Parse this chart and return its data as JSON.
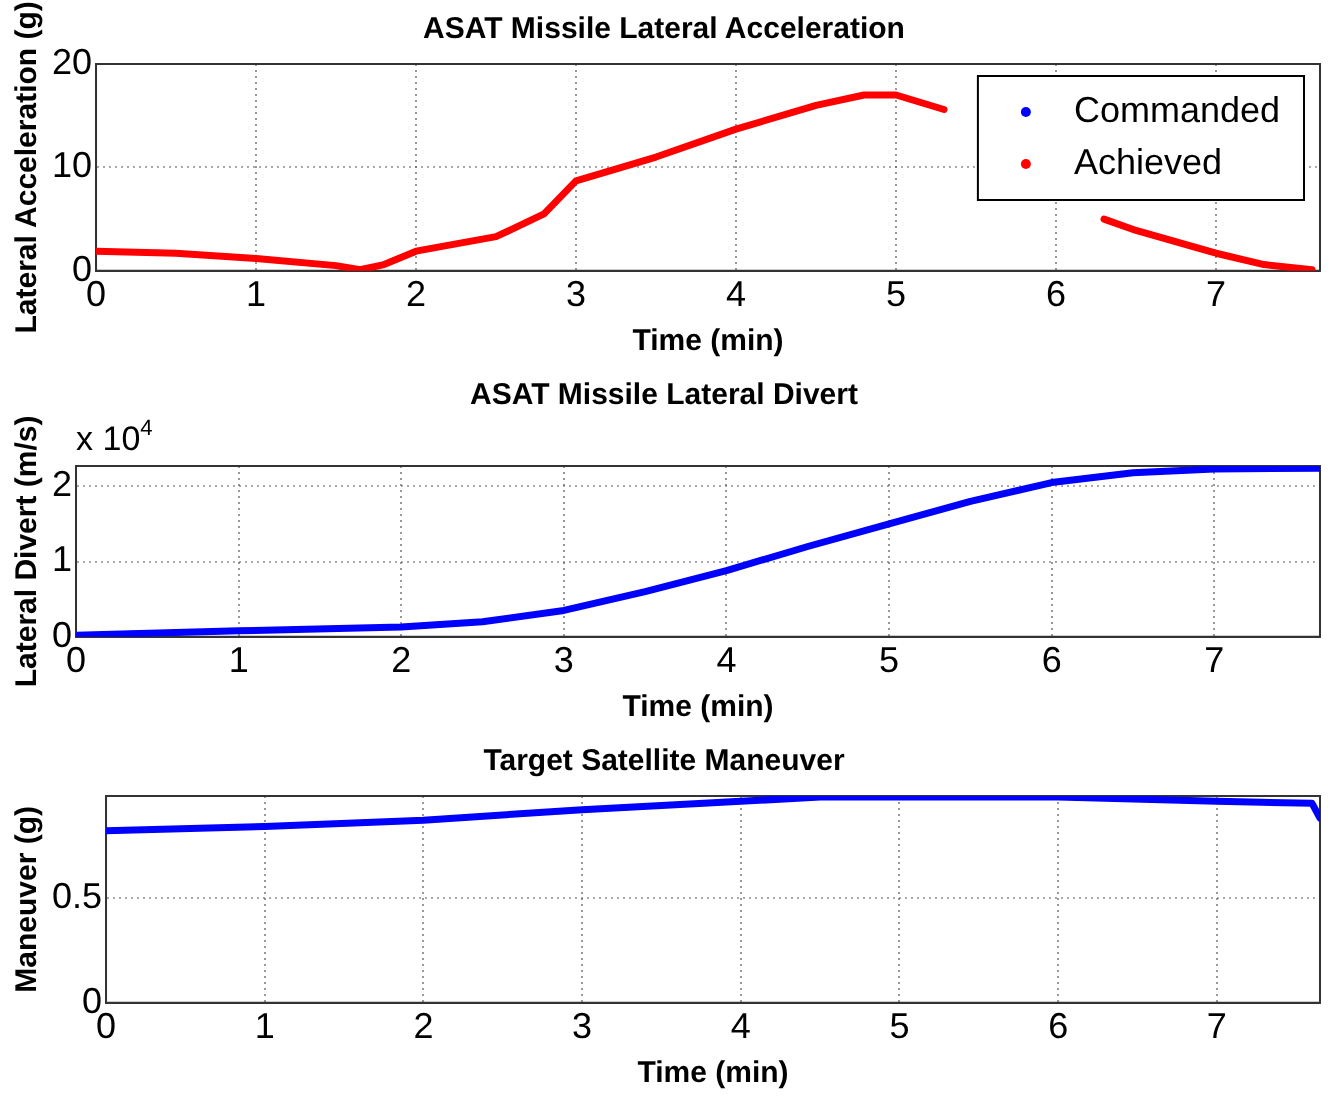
{
  "chart_data": [
    {
      "type": "line",
      "title": "ASAT Missile Lateral Acceleration",
      "xlabel": "Time (min)",
      "ylabel": "Lateral Acceleration (g)",
      "x": [
        0,
        0.5,
        1,
        1.5,
        1.65,
        1.8,
        2,
        2.5,
        2.8,
        3,
        3.5,
        4,
        4.5,
        4.8,
        5,
        5.3,
        5.8,
        6.0,
        6.3,
        6.5,
        7,
        7.3,
        7.6
      ],
      "series": [
        {
          "name": "Commanded",
          "color": "#0000ff",
          "values": [
            null,
            null,
            null,
            null,
            null,
            null,
            null,
            null,
            null,
            null,
            null,
            null,
            null,
            null,
            null,
            null,
            null,
            null,
            null,
            null,
            null,
            null,
            null
          ]
        },
        {
          "name": "Achieved",
          "color": "#ff0000",
          "values": [
            1.9,
            1.7,
            1.2,
            0.5,
            0.1,
            0.6,
            1.9,
            3.3,
            5.5,
            8.7,
            11,
            13.7,
            16,
            17,
            17,
            15.6,
            null,
            null,
            5,
            3.9,
            1.7,
            0.6,
            0.1
          ]
        }
      ],
      "xlim": [
        0,
        7.65
      ],
      "xticks": [
        0,
        1,
        2,
        3,
        4,
        5,
        6,
        7
      ],
      "ylim": [
        0,
        20
      ],
      "yticks": [
        0,
        10,
        20
      ],
      "grid": true,
      "legend": "top right",
      "line_style": "solid"
    },
    {
      "type": "line",
      "title": "ASAT Missile Lateral Divert",
      "xlabel": "Time (min)",
      "ylabel": "Lateral Divert (m/s)",
      "annotations": [
        "x 10$^{4}$"
      ],
      "x": [
        0,
        1,
        2,
        2.5,
        3,
        3.5,
        4,
        4.5,
        5,
        5.5,
        6,
        6.5,
        7,
        7.65
      ],
      "series": [
        {
          "color": "#0000ff",
          "values": [
            0.02,
            0.08,
            0.13,
            0.2,
            0.35,
            0.6,
            0.88,
            1.2,
            1.5,
            1.8,
            2.05,
            2.18,
            2.23,
            2.24
          ]
        }
      ],
      "xlim": [
        0,
        7.65
      ],
      "xticks": [
        0,
        1,
        2,
        3,
        4,
        5,
        6,
        7
      ],
      "ylim": [
        0,
        2.27
      ],
      "yticks": [
        0,
        1,
        2
      ],
      "grid": true,
      "line_style": "solid"
    },
    {
      "type": "line",
      "title": "Target Satellite Maneuver",
      "xlabel": "Time (min)",
      "ylabel": "Maneuver (g)",
      "x": [
        0,
        1,
        2,
        3,
        4,
        4.5,
        5,
        6,
        7,
        7.6,
        7.65
      ],
      "series": [
        {
          "color": "#0000ff",
          "values": [
            0.82,
            0.84,
            0.87,
            0.92,
            0.96,
            0.98,
            0.98,
            0.98,
            0.96,
            0.95,
            0.88
          ]
        }
      ],
      "xlim": [
        0,
        7.65
      ],
      "xticks": [
        0,
        1,
        2,
        3,
        4,
        5,
        6,
        7
      ],
      "ylim": [
        0,
        0.985
      ],
      "yticks": [
        0,
        0.5
      ],
      "grid": true,
      "line_style": "solid"
    }
  ]
}
